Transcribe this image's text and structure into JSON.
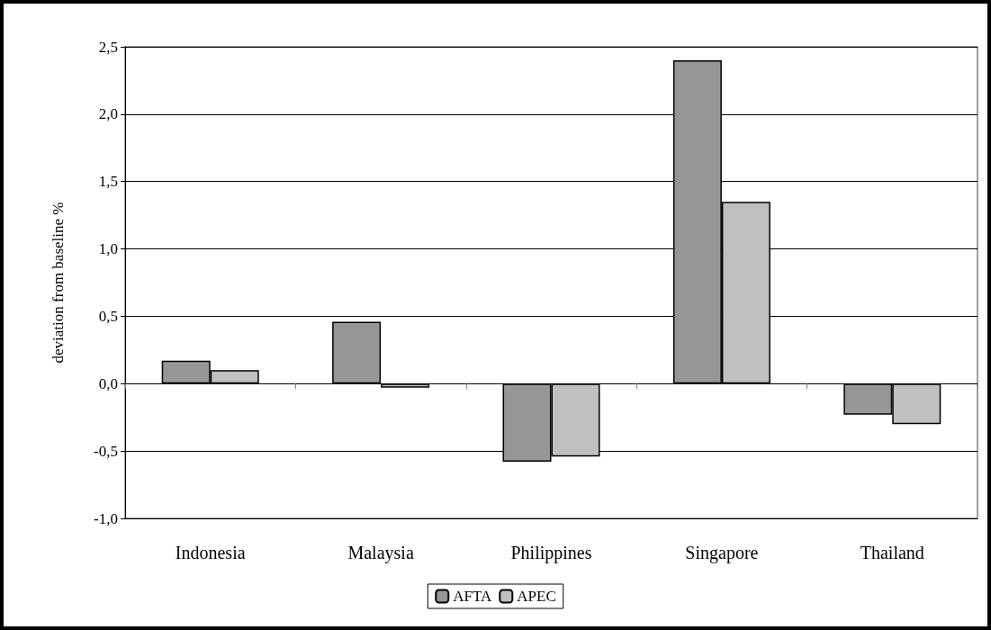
{
  "chart_data": {
    "type": "bar",
    "ylabel": "deviation from baseline %",
    "categories": [
      "Indonesia",
      "Malaysia",
      "Philippines",
      "Singapore",
      "Thailand"
    ],
    "series": [
      {
        "name": "AFTA",
        "color": "#969696",
        "values": [
          0.17,
          0.46,
          -0.58,
          2.4,
          -0.23
        ]
      },
      {
        "name": "APEC",
        "color": "#c0c0c0",
        "values": [
          0.1,
          -0.03,
          -0.54,
          1.35,
          -0.3
        ]
      }
    ],
    "ylim": [
      -1.0,
      2.5
    ],
    "yticks": [
      {
        "value": -1.0,
        "label": "-1,0"
      },
      {
        "value": -0.5,
        "label": "-0,5"
      },
      {
        "value": 0,
        "label": "0,0"
      },
      {
        "value": 0.5,
        "label": "0,5"
      },
      {
        "value": 1.0,
        "label": "1,0"
      },
      {
        "value": 1.5,
        "label": "1,5"
      },
      {
        "value": 2.0,
        "label": "2,0"
      },
      {
        "value": 2.5,
        "label": "2,5"
      }
    ],
    "grid": "y",
    "legend": "bottom"
  }
}
